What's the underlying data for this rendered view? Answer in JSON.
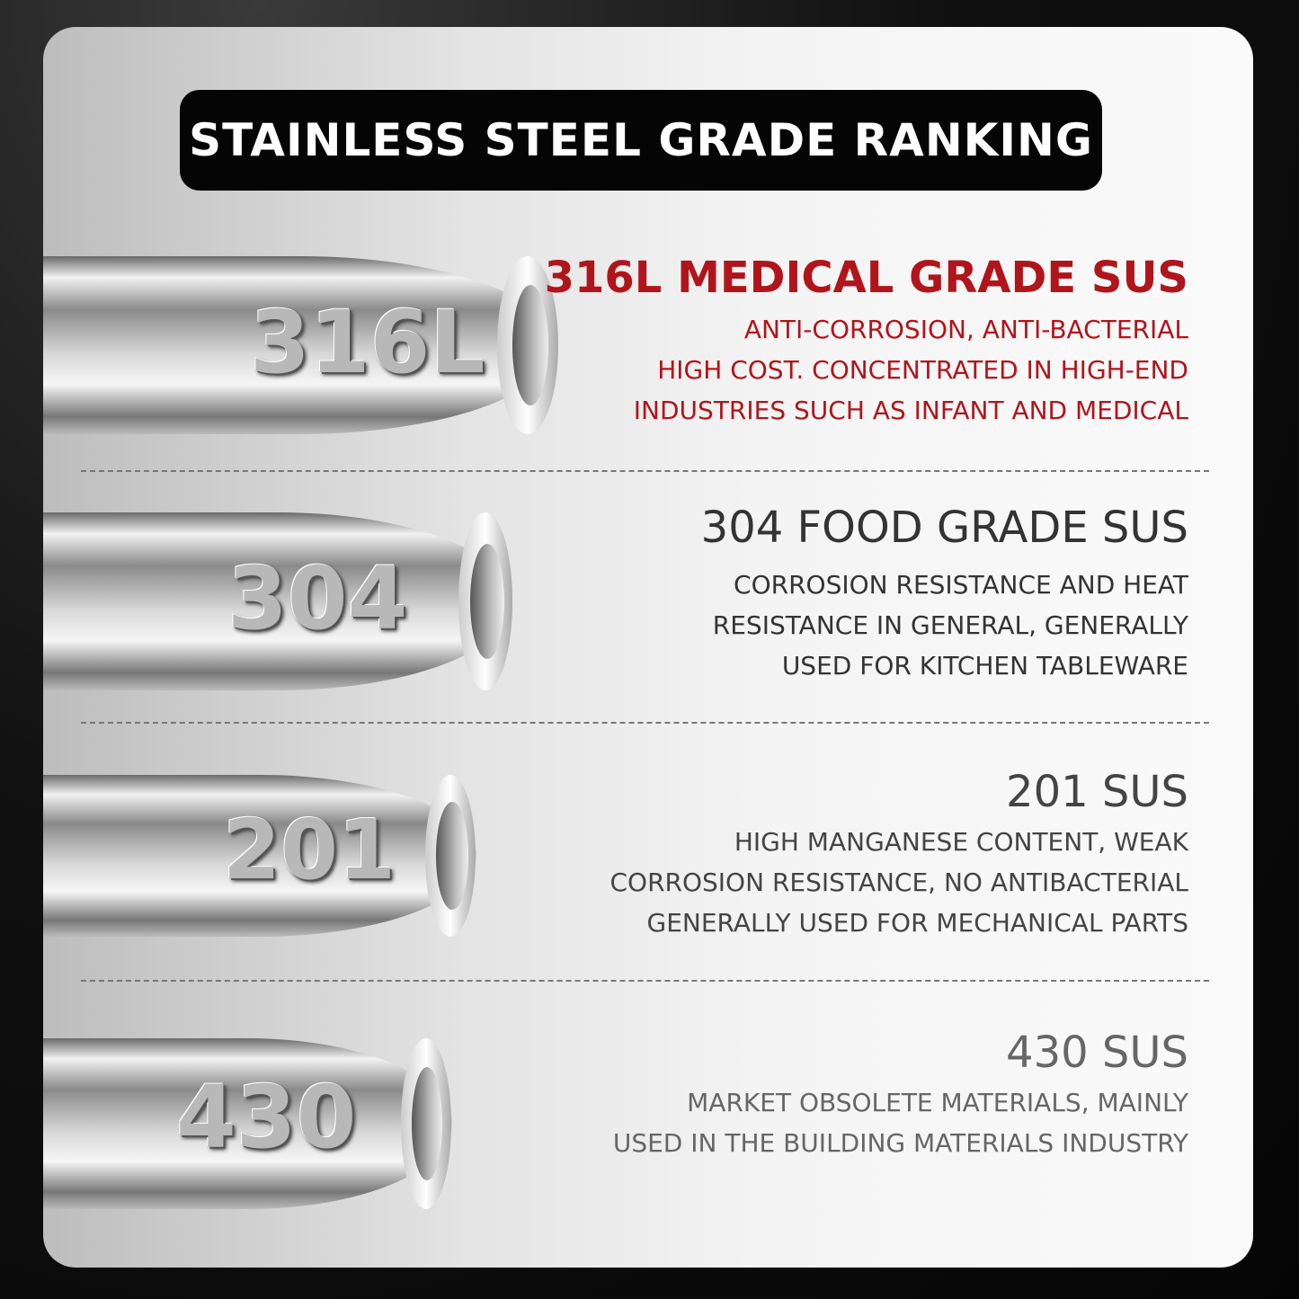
{
  "title": "STAINLESS STEEL GRADE RANKING",
  "grades": [
    {
      "tube_label": "316L",
      "heading": "316L MEDICAL GRADE SUS",
      "lines": [
        "ANTI-CORROSION, ANTI-BACTERIAL",
        "HIGH COST. CONCENTRATED IN HIGH-END",
        "INDUSTRIES SUCH AS INFANT AND MEDICAL"
      ],
      "color": "#b0151b"
    },
    {
      "tube_label": "304",
      "heading": "304 FOOD GRADE SUS",
      "lines": [
        "CORROSION RESISTANCE AND HEAT",
        "RESISTANCE IN GENERAL, GENERALLY",
        "USED FOR KITCHEN TABLEWARE"
      ],
      "color": "#333333"
    },
    {
      "tube_label": "201",
      "heading": "201 SUS",
      "lines": [
        "HIGH MANGANESE CONTENT, WEAK",
        "CORROSION RESISTANCE, NO ANTIBACTERIAL",
        "GENERALLY USED FOR MECHANICAL PARTS"
      ],
      "color": "#444444"
    },
    {
      "tube_label": "430",
      "heading": "430 SUS",
      "lines": [
        "MARKET OBSOLETE MATERIALS, MAINLY",
        "USED IN THE BUILDING MATERIALS INDUSTRY"
      ],
      "color": "#666666"
    }
  ]
}
